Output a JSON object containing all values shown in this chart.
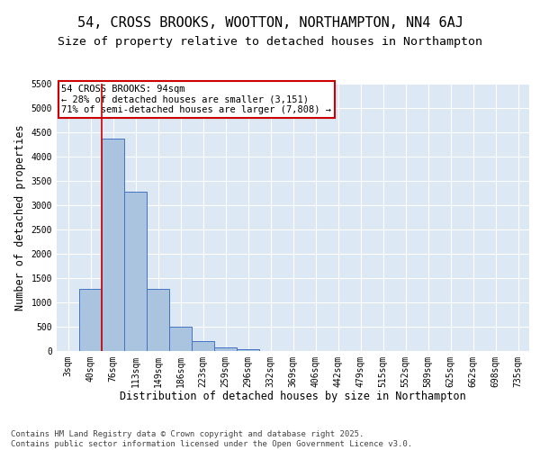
{
  "title": "54, CROSS BROOKS, WOOTTON, NORTHAMPTON, NN4 6AJ",
  "subtitle": "Size of property relative to detached houses in Northampton",
  "xlabel": "Distribution of detached houses by size in Northampton",
  "ylabel": "Number of detached properties",
  "categories": [
    "3sqm",
    "40sqm",
    "76sqm",
    "113sqm",
    "149sqm",
    "186sqm",
    "223sqm",
    "259sqm",
    "296sqm",
    "332sqm",
    "369sqm",
    "406sqm",
    "442sqm",
    "479sqm",
    "515sqm",
    "552sqm",
    "589sqm",
    "625sqm",
    "662sqm",
    "698sqm",
    "735sqm"
  ],
  "values": [
    0,
    1270,
    4370,
    3280,
    1270,
    490,
    210,
    70,
    30,
    0,
    0,
    0,
    0,
    0,
    0,
    0,
    0,
    0,
    0,
    0,
    0
  ],
  "bar_color": "#aac4e0",
  "bar_edge_color": "#4472c4",
  "plot_bg_color": "#dde8f5",
  "fig_bg_color": "#ffffff",
  "grid_color": "#ffffff",
  "vline_color": "#cc0000",
  "vline_x_index": 2,
  "annotation_text": "54 CROSS BROOKS: 94sqm\n← 28% of detached houses are smaller (3,151)\n71% of semi-detached houses are larger (7,808) →",
  "annotation_box_edgecolor": "#cc0000",
  "annotation_box_facecolor": "#ffffff",
  "ylim": [
    0,
    5500
  ],
  "yticks": [
    0,
    500,
    1000,
    1500,
    2000,
    2500,
    3000,
    3500,
    4000,
    4500,
    5000,
    5500
  ],
  "title_fontsize": 11,
  "subtitle_fontsize": 9.5,
  "axis_label_fontsize": 8.5,
  "tick_fontsize": 7,
  "annotation_fontsize": 7.5,
  "footer_fontsize": 6.5,
  "footer": "Contains HM Land Registry data © Crown copyright and database right 2025.\nContains public sector information licensed under the Open Government Licence v3.0."
}
